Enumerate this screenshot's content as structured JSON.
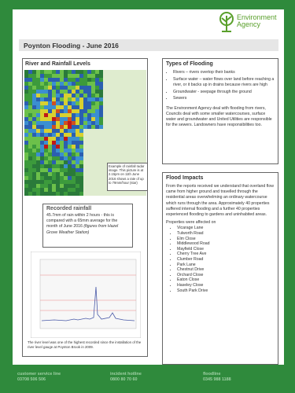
{
  "header": {
    "logo": [
      "Environment",
      "Agency"
    ],
    "title": "Poynton Flooding - June 2016"
  },
  "river_panel": {
    "title": "River and Rainfall Levels",
    "map_caption": "Example of rainfall radar image. This picture is at 2.15pm on 11th June 2016 shows a rate of up to 79mm/hour (star)",
    "rainfall": {
      "title": "Recorded rainfall",
      "text": "45.7mm of rain within 2 hours - this is compared with a 65mm average for the month of June 2016",
      "source": "(figures from Hazel Grove Weather Station)"
    },
    "graph_caption": "The river level was one of the highest recorded since the installation of the river level gauge at Poynton Brook in 2009."
  },
  "types": {
    "title": "Types of Flooding",
    "items": [
      "Rivers – rivers overtop their banks",
      "Surface water – water flows over land before reaching a river, or it backs up in drains because rivers are high",
      "Groundwater - seepage through the ground",
      "Sewers"
    ],
    "text": "The Environment Agency deal with flooding from rivers, Councils deal with some smaller watercourses, surface water and groundwater and United Utilities are responsible for the sewers. Landowners have responsibilities too."
  },
  "impacts": {
    "title": "Flood Impacts",
    "text": "From the reports received we understand that overland flow came from higher ground and travelled through the residential areas overwhelming an ordinary watercourse which runs through the area. Approximately 40 properties suffered internal flooding and a further 40 properties experienced flooding to gardens and uninhabited areas.",
    "list_intro": "Properties were affected on",
    "streets": [
      "Vicarage Lane",
      "Tulworth Road",
      "Elm Close",
      "Middlewood Road",
      "Mayfield Close",
      "Cherry Tree Ave",
      "Clumber Road",
      "Park Lane",
      "Chestnut Drive",
      "Orchard Close",
      "Eaton Close",
      "Haseley Close",
      "South Park Drive"
    ]
  },
  "footer": [
    {
      "label": "customer service line",
      "number": "03708 506 506"
    },
    {
      "label": "incident hotline",
      "number": "0800 80 70 60"
    },
    {
      "label": "floodline",
      "number": "0345 988 1188"
    }
  ]
}
